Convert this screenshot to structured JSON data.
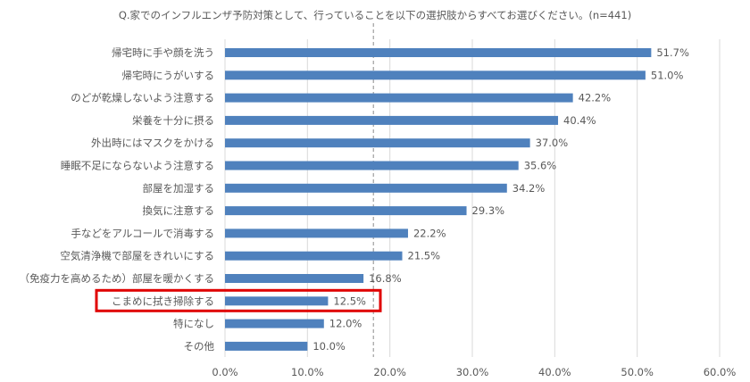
{
  "chart_data": {
    "type": "bar",
    "orientation": "horizontal",
    "title": "Q.家でのインフルエンザ予防対策として、行っていることを以下の選択肢からすべてお選びください。(n=441)",
    "categories": [
      "帰宅時に手や顔を洗う",
      "帰宅時にうがいする",
      "のどが乾燥しないよう注意する",
      "栄養を十分に摂る",
      "外出時にはマスクをかける",
      "睡眠不足にならないよう注意する",
      "部屋を加湿する",
      "換気に注意する",
      "手などをアルコールで消毒する",
      "空気清浄機で部屋をきれいにする",
      "（免疫力を高めるため）部屋を暖かくする",
      "こまめに拭き掃除する",
      "特になし",
      "その他"
    ],
    "values": [
      51.7,
      51.0,
      42.2,
      40.4,
      37.0,
      35.6,
      34.2,
      29.3,
      22.2,
      21.5,
      16.8,
      12.5,
      12.0,
      10.0
    ],
    "value_labels": [
      "51.7%",
      "51.0%",
      "42.2%",
      "40.4%",
      "37.0%",
      "35.6%",
      "34.2%",
      "29.3%",
      "22.2%",
      "21.5%",
      "16.8%",
      "12.5%",
      "12.0%",
      "10.0%"
    ],
    "xlim": [
      0,
      60
    ],
    "xticks": [
      0,
      10,
      20,
      30,
      40,
      50,
      60
    ],
    "xtick_labels": [
      "0.0%",
      "10.0%",
      "20.0%",
      "30.0%",
      "40.0%",
      "50.0%",
      "60.0%"
    ],
    "reference_line_value": 18,
    "highlight_category": "こまめに拭き掃除する",
    "grid": true,
    "legend": "none",
    "colors": {
      "bar": "#4f81bd",
      "highlight_box": "#e00000",
      "grid": "#d9d9d9",
      "reference_line": "#8c8c8c",
      "text": "#595959"
    }
  }
}
